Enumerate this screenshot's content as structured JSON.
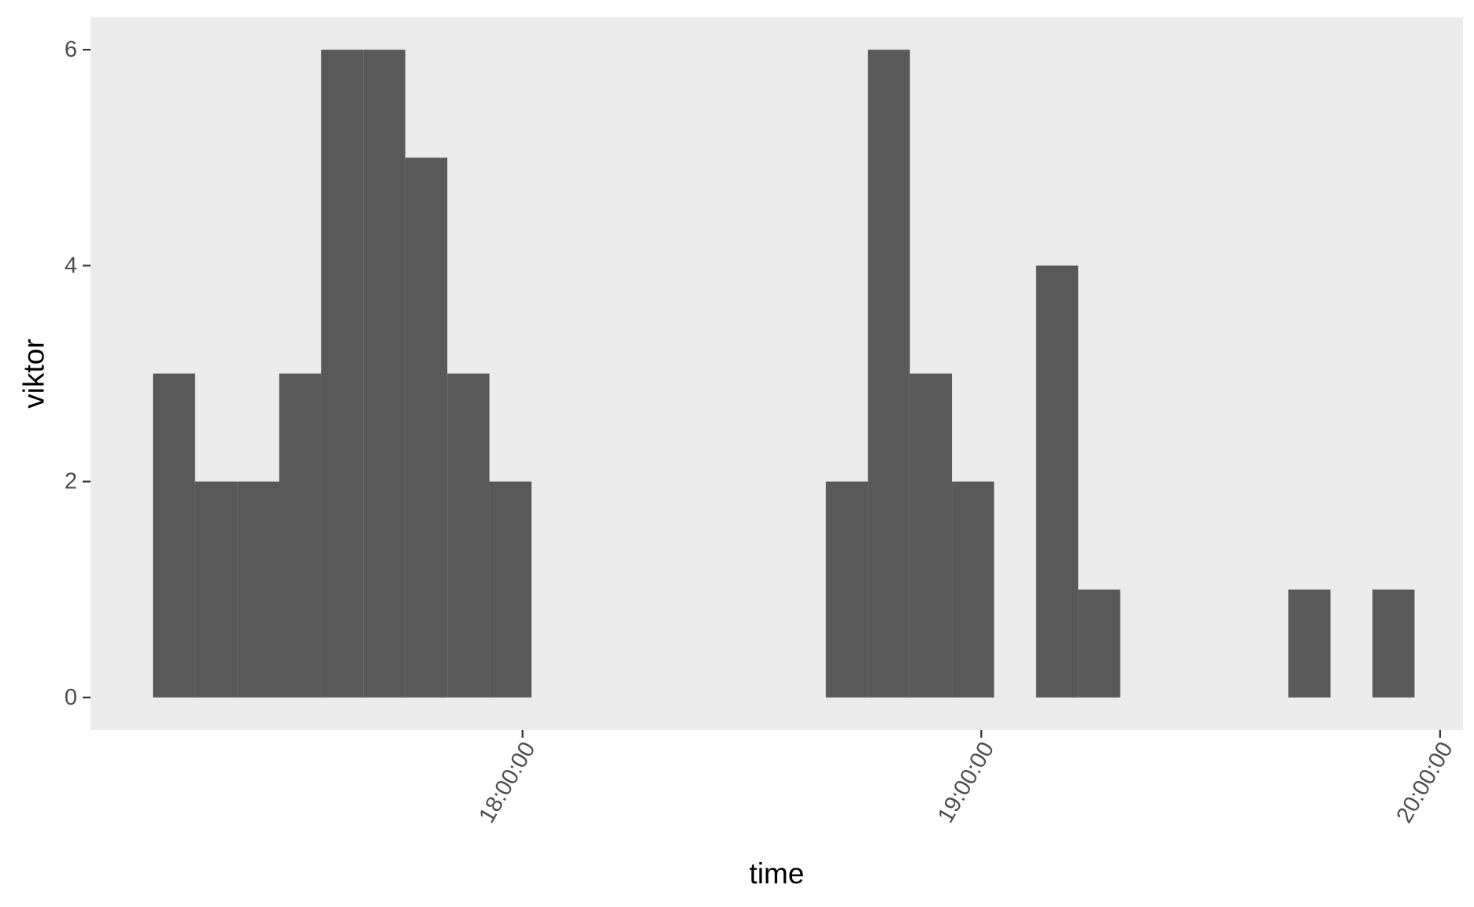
{
  "chart_data": {
    "type": "bar",
    "title": "",
    "xlabel": "time",
    "ylabel": "viktor",
    "x_scale": "time",
    "bin_width_minutes": 5.5,
    "bins": [
      {
        "start": "17:11:40",
        "end": "17:17:10",
        "count": 3
      },
      {
        "start": "17:17:10",
        "end": "17:22:40",
        "count": 2
      },
      {
        "start": "17:22:40",
        "end": "17:28:10",
        "count": 2
      },
      {
        "start": "17:28:10",
        "end": "17:33:40",
        "count": 3
      },
      {
        "start": "17:33:40",
        "end": "17:39:10",
        "count": 6
      },
      {
        "start": "17:39:10",
        "end": "17:44:40",
        "count": 6
      },
      {
        "start": "17:44:40",
        "end": "17:50:10",
        "count": 5
      },
      {
        "start": "17:50:10",
        "end": "17:55:40",
        "count": 3
      },
      {
        "start": "17:55:40",
        "end": "18:01:10",
        "count": 2
      },
      {
        "start": "18:39:40",
        "end": "18:45:10",
        "count": 2
      },
      {
        "start": "18:45:10",
        "end": "18:50:40",
        "count": 6
      },
      {
        "start": "18:50:40",
        "end": "18:56:10",
        "count": 3
      },
      {
        "start": "18:56:10",
        "end": "19:01:40",
        "count": 2
      },
      {
        "start": "19:07:10",
        "end": "19:12:40",
        "count": 4
      },
      {
        "start": "19:12:40",
        "end": "19:18:10",
        "count": 1
      },
      {
        "start": "19:40:10",
        "end": "19:45:40",
        "count": 1
      },
      {
        "start": "19:51:10",
        "end": "19:56:40",
        "count": 1
      }
    ],
    "x_range": [
      "17:03:30",
      "20:03:00"
    ],
    "ylim": [
      -0.3,
      6.3
    ],
    "x_ticks": [
      "18:00:00",
      "19:00:00",
      "20:00:00"
    ],
    "y_ticks": [
      0,
      2,
      4,
      6
    ],
    "grid": false,
    "colors": {
      "panel_background": "#EBEBEB",
      "bar_fill": "#595959",
      "tick_label": "#4D4D4D",
      "axis_title": "#000000"
    }
  }
}
